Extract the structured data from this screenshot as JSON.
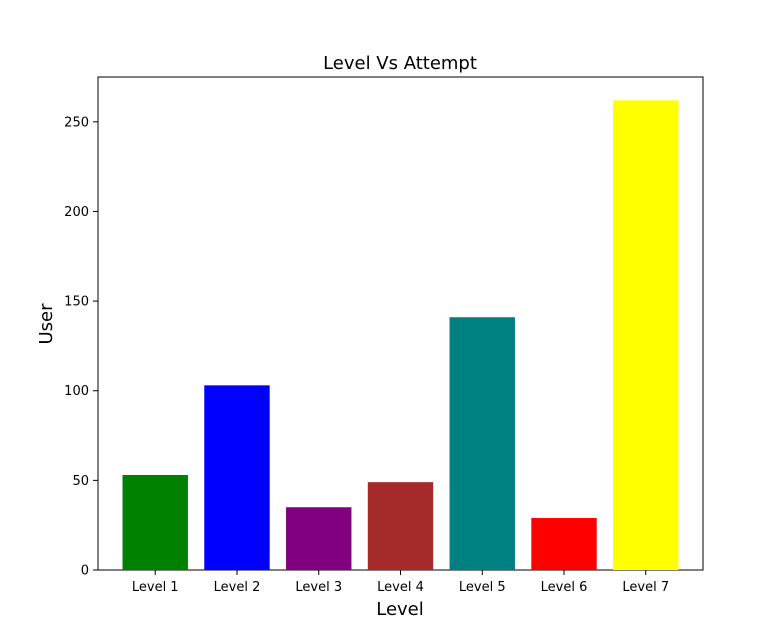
{
  "chart_data": {
    "type": "bar",
    "title": "Level Vs Attempt",
    "xlabel": "Level",
    "ylabel": "User",
    "categories": [
      "Level 1",
      "Level 2",
      "Level 3",
      "Level 4",
      "Level 5",
      "Level 6",
      "Level 7"
    ],
    "values": [
      53,
      103,
      35,
      49,
      141,
      29,
      262
    ],
    "colors": [
      "#008000",
      "#0000ff",
      "#800080",
      "#a52a2a",
      "#008080",
      "#ff0000",
      "#ffff00"
    ],
    "ylim": [
      0,
      275
    ],
    "yticks": [
      0,
      50,
      100,
      150,
      200,
      250
    ],
    "grid": false,
    "legend": "none"
  }
}
